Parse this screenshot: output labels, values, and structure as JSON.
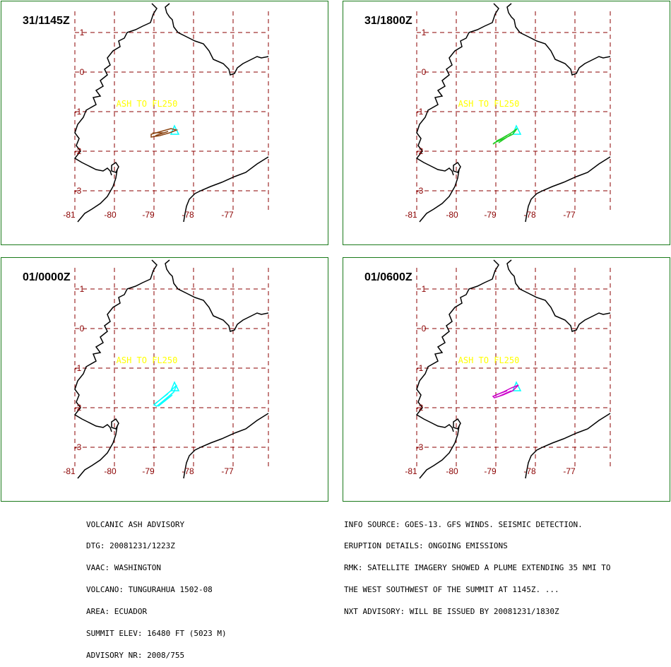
{
  "panels": [
    {
      "time": "31/1145Z",
      "plume_color": "#8b4513"
    },
    {
      "time": "31/1800Z",
      "plume_color": "#22cc22"
    },
    {
      "time": "01/0000Z",
      "plume_color": "#00ffff"
    },
    {
      "time": "01/0600Z",
      "plume_color": "#cc00cc"
    }
  ],
  "map": {
    "ash_label": "ASH TO FL250",
    "lat_labels": [
      "1",
      "0",
      "-1",
      "-2",
      "-3"
    ],
    "lon_labels": [
      "-81",
      "-80",
      "-79",
      "-78",
      "-77"
    ],
    "colors": {
      "grid": "#8b0000",
      "ash_label": "#ffff00",
      "coast": "#000000",
      "volcano": "#00ffff",
      "border": "#1a7a1a"
    }
  },
  "advisory_left": [
    "VOLCANIC ASH ADVISORY",
    "DTG: 20081231/1223Z",
    "VAAC: WASHINGTON",
    "VOLCANO: TUNGURAHUA 1502-08",
    "AREA: ECUADOR",
    "SUMMIT ELEV: 16480 FT (5023 M)",
    "ADVISORY NR: 2008/755"
  ],
  "advisory_right": [
    "INFO SOURCE: GOES-13. GFS WINDS. SEISMIC DETECTION.",
    "ERUPTION DETAILS: ONGOING EMISSIONS",
    "RMK: SATELLITE IMAGERY SHOWED A PLUME EXTENDING 35 NMI TO",
    "THE WEST SOUTHWEST OF THE SUMMIT AT 1145Z. ...",
    "NXT ADVISORY: WILL BE ISSUED BY 20081231/1830Z"
  ]
}
